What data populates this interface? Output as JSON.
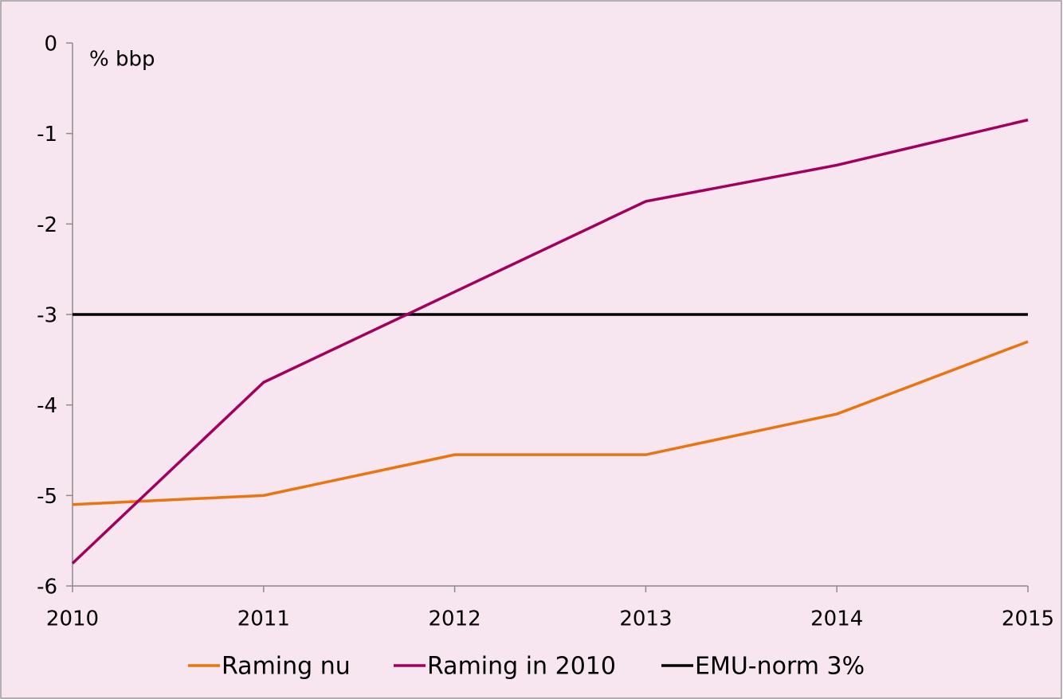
{
  "chart_data": {
    "type": "line",
    "y_label": "% bbp",
    "x": [
      2010,
      2011,
      2012,
      2013,
      2014,
      2015
    ],
    "xlim": [
      2010,
      2015
    ],
    "xticks": [
      2010,
      2011,
      2012,
      2013,
      2014,
      2015
    ],
    "ylim": [
      -6,
      0
    ],
    "yticks": [
      0,
      -1,
      -2,
      -3,
      -4,
      -5,
      -6
    ],
    "legend": "bottom",
    "series": [
      {
        "name": "Raming nu",
        "color": "#e8750f",
        "values": [
          -5.1,
          -5.0,
          -4.55,
          -4.55,
          -4.1,
          -3.3
        ]
      },
      {
        "name": "Raming in 2010",
        "color": "#a3005e",
        "values": [
          -5.75,
          -3.75,
          -2.75,
          -1.75,
          -1.35,
          -0.85
        ]
      },
      {
        "name": "EMU-norm 3%",
        "color": "#000000",
        "values": [
          -3,
          -3,
          -3,
          -3,
          -3,
          -3
        ]
      }
    ]
  }
}
